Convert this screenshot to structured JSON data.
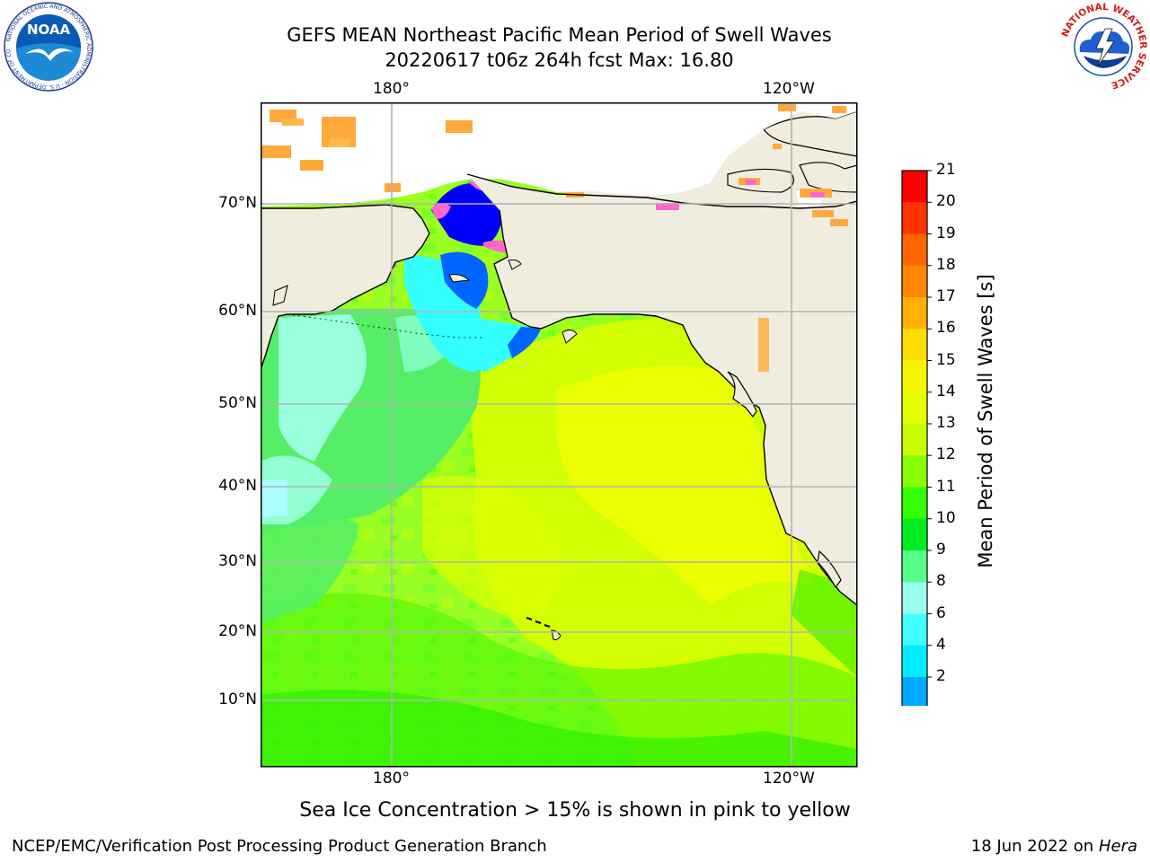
{
  "header": {
    "title_line1": "GEFS MEAN Northeast Pacific Mean Period of Swell Waves",
    "title_line2": "20220617 t06z 264h fcst   Max: 16.80"
  },
  "logos": {
    "noaa_text": "NOAA",
    "noaa_ring_text": "NATIONAL OCEANIC AND ATMOSPHERIC ADMINISTRATION · U.S. DEPARTMENT OF COMMERCE",
    "nws_ring_text": "NATIONAL WEATHER SERVICE"
  },
  "map": {
    "lon_labels_top": [
      "180°",
      "120°W"
    ],
    "lon_labels_bottom": [
      "180°",
      "120°W"
    ],
    "lat_labels": [
      "70°N",
      "60°N",
      "50°N",
      "40°N",
      "30°N",
      "20°N",
      "10°N"
    ],
    "colors": {
      "land": "#efedde",
      "grid": "#b4b4b4",
      "coast": "#000000",
      "ice_pink": "#ff66cc",
      "ice_orange": "#ffa93a"
    }
  },
  "colorbar": {
    "label": "Mean Period of Swell Waves [s]",
    "ticks": [
      "21",
      "20",
      "19",
      "18",
      "17",
      "16",
      "15",
      "14",
      "13",
      "12",
      "11",
      "10",
      "9",
      "8",
      "6",
      "4",
      "2"
    ],
    "colors": [
      "#ff0000",
      "#ff3300",
      "#ff6600",
      "#ff8800",
      "#ffb000",
      "#ffdd00",
      "#f5f500",
      "#e6ff00",
      "#c8ff00",
      "#88ff00",
      "#33ff00",
      "#00ee22",
      "#55ff88",
      "#99ffee",
      "#44ffff",
      "#00eeff",
      "#00aaff",
      "#0066ff"
    ],
    "extend_color": "#0000ff"
  },
  "footer": {
    "note": "Sea Ice Concentration > 15% is shown in pink to yellow",
    "left": "NCEP/EMC/Verification Post Processing Product Generation Branch",
    "right_date": "18 Jun 2022 on",
    "right_system": "Hera"
  }
}
